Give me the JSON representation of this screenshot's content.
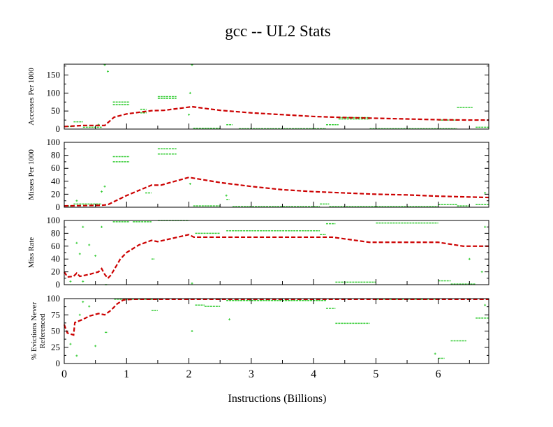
{
  "chart_data": {
    "type": "line",
    "title": "gcc -- UL2  Stats",
    "xlabel": "Instructions (Billions)",
    "xlim": [
      0,
      6.81
    ],
    "xticks": [
      0,
      1,
      2,
      3,
      4,
      5,
      6
    ],
    "colors": {
      "average": "#cc0000",
      "samples": "#33cc33",
      "axis": "#000000"
    },
    "panels": [
      {
        "ylabel": [
          "Accesses Per 1000"
        ],
        "ylim": [
          0,
          180
        ],
        "yticks": [
          0,
          50,
          100,
          150
        ],
        "average": [
          [
            0,
            7
          ],
          [
            0.3,
            10
          ],
          [
            0.65,
            10
          ],
          [
            0.8,
            33
          ],
          [
            1.0,
            42
          ],
          [
            1.4,
            51
          ],
          [
            1.6,
            52
          ],
          [
            2.05,
            62
          ],
          [
            2.5,
            52
          ],
          [
            3,
            45
          ],
          [
            3.5,
            40
          ],
          [
            4,
            35
          ],
          [
            4.5,
            32
          ],
          [
            5,
            30
          ],
          [
            5.5,
            28
          ],
          [
            6,
            26
          ],
          [
            6.5,
            25
          ],
          [
            6.81,
            25
          ]
        ],
        "sample_runs": [
          [
            0,
            0.15,
            7
          ],
          [
            0.15,
            0.3,
            20
          ],
          [
            0.3,
            0.6,
            5
          ],
          [
            0.78,
            1.05,
            75
          ],
          [
            0.78,
            1.05,
            68
          ],
          [
            1.22,
            1.32,
            55
          ],
          [
            1.22,
            1.32,
            45
          ],
          [
            1.5,
            1.8,
            90
          ],
          [
            1.5,
            1.8,
            85
          ],
          [
            2.07,
            2.5,
            2
          ],
          [
            2.6,
            2.7,
            12
          ],
          [
            2.8,
            4.2,
            1
          ],
          [
            4.2,
            4.4,
            12
          ],
          [
            4.4,
            4.9,
            32
          ],
          [
            4.4,
            4.9,
            28
          ],
          [
            4.9,
            6.3,
            1
          ],
          [
            6.3,
            6.55,
            60
          ],
          [
            6.0,
            6.3,
            25
          ],
          [
            6.6,
            6.81,
            5
          ]
        ],
        "sample_points": [
          [
            0.65,
            178
          ],
          [
            0.7,
            160
          ],
          [
            2.05,
            178
          ],
          [
            2.0,
            40
          ],
          [
            2.02,
            100
          ],
          [
            0.55,
            12
          ]
        ]
      },
      {
        "ylabel": [
          "Misses Per 1000"
        ],
        "ylim": [
          0,
          100
        ],
        "yticks": [
          0,
          20,
          40,
          60,
          80,
          100
        ],
        "average": [
          [
            0,
            2
          ],
          [
            0.6,
            3
          ],
          [
            0.7,
            4
          ],
          [
            1.0,
            18
          ],
          [
            1.4,
            34
          ],
          [
            1.55,
            34
          ],
          [
            2.0,
            46
          ],
          [
            2.5,
            38
          ],
          [
            3,
            32
          ],
          [
            3.5,
            27
          ],
          [
            4,
            24
          ],
          [
            4.5,
            22
          ],
          [
            5,
            20
          ],
          [
            5.5,
            19
          ],
          [
            6,
            17
          ],
          [
            6.81,
            15
          ]
        ],
        "sample_runs": [
          [
            0,
            0.15,
            2
          ],
          [
            0.15,
            0.6,
            5
          ],
          [
            0.78,
            1.05,
            78
          ],
          [
            0.78,
            1.05,
            70
          ],
          [
            1.5,
            1.8,
            90
          ],
          [
            1.5,
            1.8,
            82
          ],
          [
            1.3,
            1.4,
            22
          ],
          [
            2.07,
            2.5,
            2
          ],
          [
            2.6,
            2.65,
            12
          ],
          [
            2.7,
            4.1,
            1
          ],
          [
            4.1,
            4.25,
            5
          ],
          [
            4.25,
            5.0,
            1
          ],
          [
            5.0,
            6.0,
            1
          ],
          [
            6.0,
            6.3,
            4
          ],
          [
            6.3,
            6.5,
            2
          ],
          [
            6.6,
            6.81,
            4
          ]
        ],
        "sample_points": [
          [
            0.6,
            24
          ],
          [
            0.65,
            32
          ],
          [
            0.2,
            10
          ],
          [
            2.02,
            36
          ],
          [
            2.6,
            18
          ],
          [
            6.75,
            22
          ]
        ]
      },
      {
        "ylabel": [
          "Miss Rate"
        ],
        "ylim": [
          0,
          100
        ],
        "yticks": [
          0,
          20,
          40,
          60,
          80,
          100
        ],
        "average": [
          [
            0,
            20
          ],
          [
            0.05,
            12
          ],
          [
            0.15,
            13
          ],
          [
            0.2,
            18
          ],
          [
            0.25,
            13
          ],
          [
            0.4,
            16
          ],
          [
            0.55,
            20
          ],
          [
            0.6,
            25
          ],
          [
            0.65,
            16
          ],
          [
            0.7,
            10
          ],
          [
            0.75,
            15
          ],
          [
            0.9,
            40
          ],
          [
            1.0,
            50
          ],
          [
            1.2,
            62
          ],
          [
            1.4,
            69
          ],
          [
            1.5,
            67
          ],
          [
            2.0,
            78
          ],
          [
            2.08,
            74
          ],
          [
            4.3,
            74
          ],
          [
            4.9,
            66
          ],
          [
            6.0,
            66
          ],
          [
            6.4,
            60
          ],
          [
            6.81,
            60
          ]
        ],
        "sample_runs": [
          [
            0.78,
            1.05,
            98
          ],
          [
            1.1,
            1.4,
            98
          ],
          [
            1.5,
            2.0,
            100
          ],
          [
            2.1,
            2.5,
            80
          ],
          [
            2.6,
            4.1,
            84
          ],
          [
            4.1,
            4.2,
            78
          ],
          [
            4.2,
            4.35,
            95
          ],
          [
            4.35,
            5.0,
            4
          ],
          [
            5.0,
            6.0,
            96
          ],
          [
            0.65,
            0.7,
            0
          ],
          [
            6.0,
            6.2,
            6
          ],
          [
            6.2,
            6.6,
            1
          ],
          [
            1.4,
            1.45,
            40
          ]
        ],
        "sample_points": [
          [
            0.1,
            5
          ],
          [
            0.25,
            48
          ],
          [
            0.3,
            90
          ],
          [
            0.4,
            62
          ],
          [
            0.5,
            45
          ],
          [
            0.6,
            90
          ],
          [
            0.2,
            65
          ],
          [
            0.3,
            5
          ],
          [
            6.5,
            40
          ],
          [
            6.7,
            20
          ],
          [
            6.75,
            90
          ],
          [
            2.05,
            2
          ]
        ]
      },
      {
        "ylabel": [
          "% Evictions Never",
          "Referenced"
        ],
        "ylim": [
          0,
          100
        ],
        "yticks": [
          0,
          25,
          50,
          75,
          100
        ],
        "average": [
          [
            0,
            60
          ],
          [
            0.05,
            47
          ],
          [
            0.15,
            44
          ],
          [
            0.17,
            63
          ],
          [
            0.3,
            68
          ],
          [
            0.4,
            73
          ],
          [
            0.55,
            77
          ],
          [
            0.65,
            75
          ],
          [
            0.75,
            82
          ],
          [
            0.85,
            92
          ],
          [
            0.95,
            98
          ],
          [
            1.1,
            99
          ],
          [
            6.81,
            99
          ]
        ],
        "sample_runs": [
          [
            0.8,
            1.5,
            99
          ],
          [
            2.1,
            2.25,
            90
          ],
          [
            2.25,
            2.5,
            88
          ],
          [
            2.6,
            4.2,
            97
          ],
          [
            4.2,
            4.35,
            85
          ],
          [
            4.35,
            4.9,
            62
          ],
          [
            5.0,
            6.0,
            99
          ],
          [
            6.2,
            6.45,
            35
          ],
          [
            6.0,
            6.1,
            8
          ],
          [
            0.65,
            0.7,
            48
          ],
          [
            6.6,
            6.81,
            70
          ],
          [
            1.4,
            1.5,
            82
          ]
        ],
        "sample_points": [
          [
            0.1,
            30
          ],
          [
            0.2,
            12
          ],
          [
            0.3,
            95
          ],
          [
            0.4,
            88
          ],
          [
            0.5,
            27
          ],
          [
            0.25,
            75
          ],
          [
            2.05,
            50
          ],
          [
            2.65,
            68
          ],
          [
            5.95,
            15
          ],
          [
            6.75,
            90
          ]
        ]
      }
    ]
  }
}
